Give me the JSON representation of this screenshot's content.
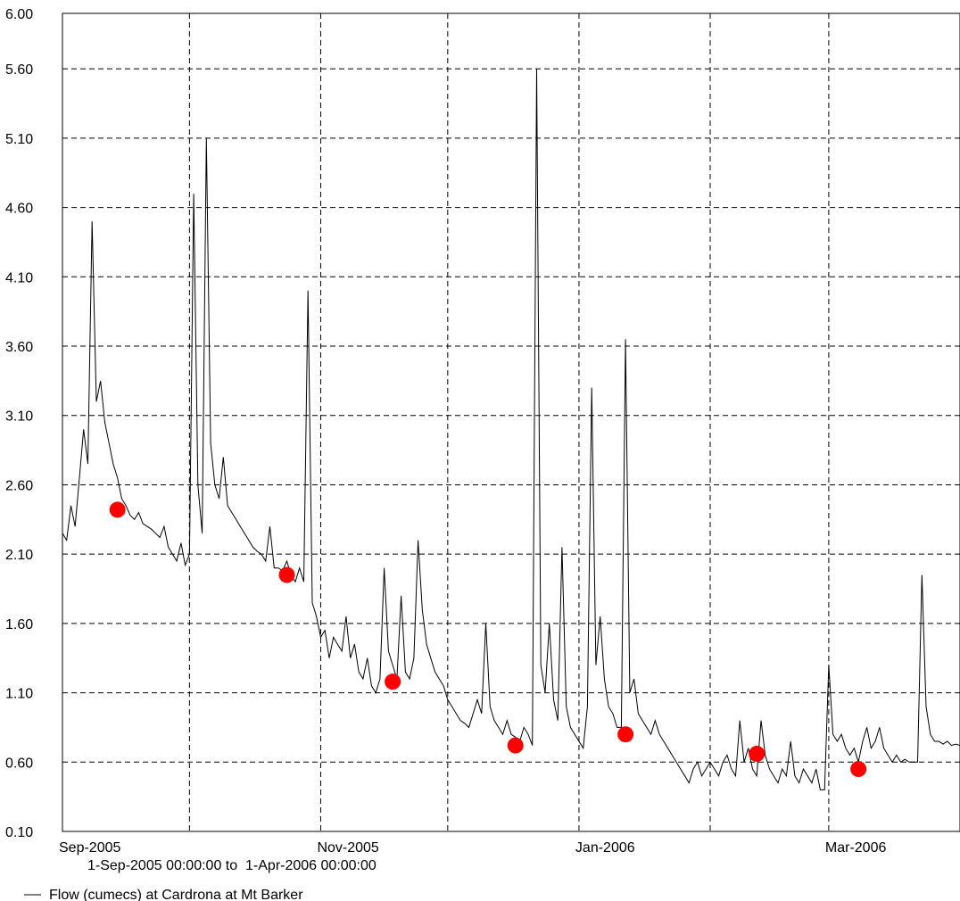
{
  "chart_data": {
    "type": "line",
    "date_range_text": "1-Sep-2005 00:00:00 to  1-Apr-2006 00:00:00",
    "x_range": [
      "2005-09-01",
      "2006-04-01"
    ],
    "ylim": [
      0.1,
      6.0
    ],
    "y_ticks": [
      0.1,
      0.6,
      1.1,
      1.6,
      2.1,
      2.6,
      3.1,
      3.6,
      4.1,
      4.6,
      5.1,
      5.6,
      6.0
    ],
    "y_tick_labels": [
      "0.10",
      "0.60",
      "1.10",
      "1.60",
      "2.10",
      "2.60",
      "3.10",
      "3.60",
      "4.10",
      "4.60",
      "5.10",
      "5.60",
      "6.00"
    ],
    "x_gridlines": [
      "2005-10-01",
      "2005-11-01",
      "2005-12-01",
      "2006-01-01",
      "2006-02-01",
      "2006-03-01"
    ],
    "x_tick_labels": [
      {
        "date": "2005-09-01",
        "label": "Sep-2005"
      },
      {
        "date": "2005-11-01",
        "label": "Nov-2005"
      },
      {
        "date": "2006-01-01",
        "label": "Jan-2006"
      },
      {
        "date": "2006-03-01",
        "label": "Mar-2006"
      }
    ],
    "grid": true,
    "line_color": "#000000",
    "marker_color": "#ff0000",
    "legend_placement": "bottom-left",
    "series": [
      {
        "name": "Flow (cumecs) at Cardrona at Mt Barker",
        "points": [
          [
            "2005-09-01",
            2.25
          ],
          [
            "2005-09-02",
            2.2
          ],
          [
            "2005-09-03",
            2.45
          ],
          [
            "2005-09-04",
            2.3
          ],
          [
            "2005-09-05",
            2.65
          ],
          [
            "2005-09-06",
            3.0
          ],
          [
            "2005-09-07",
            2.75
          ],
          [
            "2005-09-08",
            4.5
          ],
          [
            "2005-09-09",
            3.2
          ],
          [
            "2005-09-10",
            3.35
          ],
          [
            "2005-09-11",
            3.05
          ],
          [
            "2005-09-12",
            2.9
          ],
          [
            "2005-09-13",
            2.75
          ],
          [
            "2005-09-14",
            2.65
          ],
          [
            "2005-09-15",
            2.5
          ],
          [
            "2005-09-16",
            2.45
          ],
          [
            "2005-09-17",
            2.38
          ],
          [
            "2005-09-18",
            2.35
          ],
          [
            "2005-09-19",
            2.4
          ],
          [
            "2005-09-20",
            2.32
          ],
          [
            "2005-09-21",
            2.3
          ],
          [
            "2005-09-22",
            2.28
          ],
          [
            "2005-09-23",
            2.25
          ],
          [
            "2005-09-24",
            2.22
          ],
          [
            "2005-09-25",
            2.3
          ],
          [
            "2005-09-26",
            2.15
          ],
          [
            "2005-09-27",
            2.1
          ],
          [
            "2005-09-28",
            2.05
          ],
          [
            "2005-09-29",
            2.18
          ],
          [
            "2005-09-30",
            2.02
          ],
          [
            "2005-10-01",
            2.1
          ],
          [
            "2005-10-02",
            4.7
          ],
          [
            "2005-10-03",
            2.6
          ],
          [
            "2005-10-04",
            2.25
          ],
          [
            "2005-10-05",
            5.1
          ],
          [
            "2005-10-06",
            2.9
          ],
          [
            "2005-10-07",
            2.6
          ],
          [
            "2005-10-08",
            2.5
          ],
          [
            "2005-10-09",
            2.8
          ],
          [
            "2005-10-10",
            2.45
          ],
          [
            "2005-10-11",
            2.4
          ],
          [
            "2005-10-12",
            2.35
          ],
          [
            "2005-10-13",
            2.3
          ],
          [
            "2005-10-14",
            2.25
          ],
          [
            "2005-10-15",
            2.2
          ],
          [
            "2005-10-16",
            2.15
          ],
          [
            "2005-10-17",
            2.12
          ],
          [
            "2005-10-18",
            2.1
          ],
          [
            "2005-10-19",
            2.05
          ],
          [
            "2005-10-20",
            2.3
          ],
          [
            "2005-10-21",
            2.0
          ],
          [
            "2005-10-22",
            2.0
          ],
          [
            "2005-10-23",
            1.98
          ],
          [
            "2005-10-24",
            2.05
          ],
          [
            "2005-10-25",
            1.95
          ],
          [
            "2005-10-26",
            1.9
          ],
          [
            "2005-10-27",
            2.0
          ],
          [
            "2005-10-28",
            1.9
          ],
          [
            "2005-10-29",
            4.0
          ],
          [
            "2005-10-30",
            1.75
          ],
          [
            "2005-10-31",
            1.65
          ],
          [
            "2005-11-01",
            1.5
          ],
          [
            "2005-11-02",
            1.55
          ],
          [
            "2005-11-03",
            1.35
          ],
          [
            "2005-11-04",
            1.5
          ],
          [
            "2005-11-05",
            1.45
          ],
          [
            "2005-11-06",
            1.4
          ],
          [
            "2005-11-07",
            1.65
          ],
          [
            "2005-11-08",
            1.35
          ],
          [
            "2005-11-09",
            1.45
          ],
          [
            "2005-11-10",
            1.25
          ],
          [
            "2005-11-11",
            1.2
          ],
          [
            "2005-11-12",
            1.35
          ],
          [
            "2005-11-13",
            1.15
          ],
          [
            "2005-11-14",
            1.1
          ],
          [
            "2005-11-15",
            1.2
          ],
          [
            "2005-11-16",
            2.0
          ],
          [
            "2005-11-17",
            1.4
          ],
          [
            "2005-11-18",
            1.3
          ],
          [
            "2005-11-19",
            1.2
          ],
          [
            "2005-11-20",
            1.8
          ],
          [
            "2005-11-21",
            1.25
          ],
          [
            "2005-11-22",
            1.2
          ],
          [
            "2005-11-23",
            1.35
          ],
          [
            "2005-11-24",
            2.2
          ],
          [
            "2005-11-25",
            1.7
          ],
          [
            "2005-11-26",
            1.45
          ],
          [
            "2005-11-27",
            1.35
          ],
          [
            "2005-11-28",
            1.25
          ],
          [
            "2005-11-29",
            1.2
          ],
          [
            "2005-11-30",
            1.15
          ],
          [
            "2005-12-01",
            1.05
          ],
          [
            "2005-12-02",
            1.0
          ],
          [
            "2005-12-03",
            0.95
          ],
          [
            "2005-12-04",
            0.9
          ],
          [
            "2005-12-05",
            0.88
          ],
          [
            "2005-12-06",
            0.85
          ],
          [
            "2005-12-07",
            0.95
          ],
          [
            "2005-12-08",
            1.05
          ],
          [
            "2005-12-09",
            0.95
          ],
          [
            "2005-12-10",
            1.6
          ],
          [
            "2005-12-11",
            1.0
          ],
          [
            "2005-12-12",
            0.9
          ],
          [
            "2005-12-13",
            0.85
          ],
          [
            "2005-12-14",
            0.8
          ],
          [
            "2005-12-15",
            0.9
          ],
          [
            "2005-12-16",
            0.8
          ],
          [
            "2005-12-17",
            0.78
          ],
          [
            "2005-12-18",
            0.75
          ],
          [
            "2005-12-19",
            0.85
          ],
          [
            "2005-12-20",
            0.8
          ],
          [
            "2005-12-21",
            0.72
          ],
          [
            "2005-12-22",
            5.6
          ],
          [
            "2005-12-23",
            1.3
          ],
          [
            "2005-12-24",
            1.1
          ],
          [
            "2005-12-25",
            1.6
          ],
          [
            "2005-12-26",
            1.05
          ],
          [
            "2005-12-27",
            0.9
          ],
          [
            "2005-12-28",
            2.15
          ],
          [
            "2005-12-29",
            1.0
          ],
          [
            "2005-12-30",
            0.85
          ],
          [
            "2005-12-31",
            0.8
          ],
          [
            "2006-01-01",
            0.75
          ],
          [
            "2006-01-02",
            0.7
          ],
          [
            "2006-01-03",
            1.0
          ],
          [
            "2006-01-04",
            3.3
          ],
          [
            "2006-01-05",
            1.3
          ],
          [
            "2006-01-06",
            1.65
          ],
          [
            "2006-01-07",
            1.2
          ],
          [
            "2006-01-08",
            1.0
          ],
          [
            "2006-01-09",
            0.95
          ],
          [
            "2006-01-10",
            0.85
          ],
          [
            "2006-01-11",
            0.85
          ],
          [
            "2006-01-12",
            3.65
          ],
          [
            "2006-01-13",
            1.1
          ],
          [
            "2006-01-14",
            1.2
          ],
          [
            "2006-01-15",
            0.95
          ],
          [
            "2006-01-16",
            0.9
          ],
          [
            "2006-01-17",
            0.85
          ],
          [
            "2006-01-18",
            0.8
          ],
          [
            "2006-01-19",
            0.9
          ],
          [
            "2006-01-20",
            0.8
          ],
          [
            "2006-01-21",
            0.75
          ],
          [
            "2006-01-22",
            0.7
          ],
          [
            "2006-01-23",
            0.65
          ],
          [
            "2006-01-24",
            0.6
          ],
          [
            "2006-01-25",
            0.55
          ],
          [
            "2006-01-26",
            0.5
          ],
          [
            "2006-01-27",
            0.45
          ],
          [
            "2006-01-28",
            0.55
          ],
          [
            "2006-01-29",
            0.6
          ],
          [
            "2006-01-30",
            0.5
          ],
          [
            "2006-01-31",
            0.55
          ],
          [
            "2006-02-01",
            0.6
          ],
          [
            "2006-02-02",
            0.55
          ],
          [
            "2006-02-03",
            0.5
          ],
          [
            "2006-02-04",
            0.6
          ],
          [
            "2006-02-05",
            0.65
          ],
          [
            "2006-02-06",
            0.55
          ],
          [
            "2006-02-07",
            0.5
          ],
          [
            "2006-02-08",
            0.9
          ],
          [
            "2006-02-09",
            0.6
          ],
          [
            "2006-02-10",
            0.7
          ],
          [
            "2006-02-11",
            0.55
          ],
          [
            "2006-02-12",
            0.5
          ],
          [
            "2006-02-13",
            0.9
          ],
          [
            "2006-02-14",
            0.65
          ],
          [
            "2006-02-15",
            0.55
          ],
          [
            "2006-02-16",
            0.5
          ],
          [
            "2006-02-17",
            0.45
          ],
          [
            "2006-02-18",
            0.55
          ],
          [
            "2006-02-19",
            0.5
          ],
          [
            "2006-02-20",
            0.75
          ],
          [
            "2006-02-21",
            0.5
          ],
          [
            "2006-02-22",
            0.45
          ],
          [
            "2006-02-23",
            0.55
          ],
          [
            "2006-02-24",
            0.5
          ],
          [
            "2006-02-25",
            0.45
          ],
          [
            "2006-02-26",
            0.55
          ],
          [
            "2006-02-27",
            0.4
          ],
          [
            "2006-02-28",
            0.4
          ],
          [
            "2006-03-01",
            1.3
          ],
          [
            "2006-03-02",
            0.8
          ],
          [
            "2006-03-03",
            0.75
          ],
          [
            "2006-03-04",
            0.8
          ],
          [
            "2006-03-05",
            0.7
          ],
          [
            "2006-03-06",
            0.65
          ],
          [
            "2006-03-07",
            0.7
          ],
          [
            "2006-03-08",
            0.6
          ],
          [
            "2006-03-09",
            0.75
          ],
          [
            "2006-03-10",
            0.85
          ],
          [
            "2006-03-11",
            0.7
          ],
          [
            "2006-03-12",
            0.75
          ],
          [
            "2006-03-13",
            0.85
          ],
          [
            "2006-03-14",
            0.7
          ],
          [
            "2006-03-15",
            0.65
          ],
          [
            "2006-03-16",
            0.6
          ],
          [
            "2006-03-17",
            0.65
          ],
          [
            "2006-03-18",
            0.6
          ],
          [
            "2006-03-19",
            0.62
          ],
          [
            "2006-03-20",
            0.6
          ],
          [
            "2006-03-21",
            0.6
          ],
          [
            "2006-03-22",
            0.6
          ],
          [
            "2006-03-23",
            1.95
          ],
          [
            "2006-03-24",
            1.0
          ],
          [
            "2006-03-25",
            0.8
          ],
          [
            "2006-03-26",
            0.75
          ],
          [
            "2006-03-27",
            0.75
          ],
          [
            "2006-03-28",
            0.73
          ],
          [
            "2006-03-29",
            0.75
          ],
          [
            "2006-03-30",
            0.72
          ],
          [
            "2006-03-31",
            0.73
          ],
          [
            "2006-04-01",
            0.72
          ]
        ]
      },
      {
        "name": "",
        "type": "scatter",
        "points": [
          [
            "2005-09-14",
            2.42
          ],
          [
            "2005-10-24",
            1.95
          ],
          [
            "2005-11-18",
            1.18
          ],
          [
            "2005-12-17",
            0.72
          ],
          [
            "2006-01-12",
            0.8
          ],
          [
            "2006-02-12",
            0.66
          ],
          [
            "2006-03-08",
            0.55
          ]
        ]
      }
    ]
  }
}
